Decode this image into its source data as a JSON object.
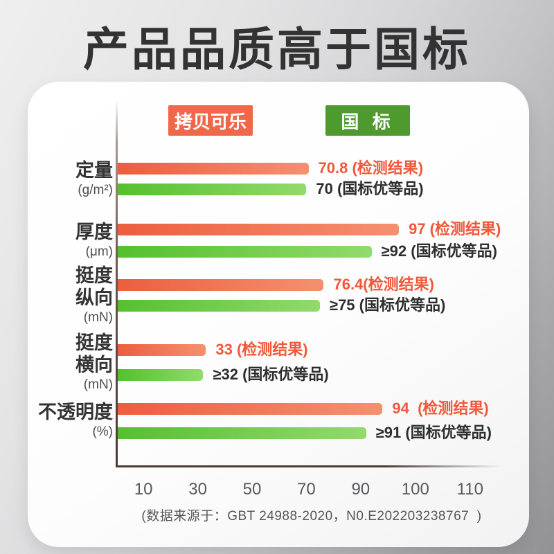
{
  "title": "产品品质高于国标",
  "legend": {
    "product": {
      "label": "拷贝可乐",
      "color": "#ef684a"
    },
    "standard": {
      "label": "国 标",
      "color": "#4e9a2e"
    }
  },
  "colors": {
    "product_bar_start": "#ec5e3e",
    "product_bar_end": "#f5906f",
    "standard_bar_start": "#55c02e",
    "standard_bar_end": "#92da6c",
    "product_text": "#f2573a",
    "standard_text": "#2e2e2e",
    "axis": "#4a3a33",
    "title_text": "#333333"
  },
  "chart_data": {
    "type": "bar",
    "orientation": "horizontal",
    "title": "产品品质高于国标",
    "legend_entries": [
      "拷贝可乐",
      "国 标"
    ],
    "categories": [
      {
        "name_lines": [
          "定量"
        ],
        "unit": "(g/m²)"
      },
      {
        "name_lines": [
          "厚度"
        ],
        "unit": "(μm)"
      },
      {
        "name_lines": [
          "挺度",
          "纵向"
        ],
        "unit": "(mN)"
      },
      {
        "name_lines": [
          "挺度",
          "横向"
        ],
        "unit": "(mN)"
      },
      {
        "name_lines": [
          "不透明度"
        ],
        "unit": "(%)"
      }
    ],
    "series": [
      {
        "name": "拷贝可乐",
        "values": [
          70.8,
          97,
          76.4,
          33,
          94
        ],
        "labels": [
          "70.8 (检测结果)",
          "97 (检测结果)",
          "76.4(检测结果)",
          "33 (检测结果)",
          "94  (检测结果)"
        ]
      },
      {
        "name": "国标",
        "values": [
          70,
          92,
          75,
          32,
          91
        ],
        "labels": [
          "70 (国标优等品)",
          "≥92 (国标优等品)",
          "≥75 (国标优等品)",
          "≥32 (国标优等品)",
          "≥91 (国标优等品)"
        ]
      }
    ],
    "x_ticks": [
      10,
      30,
      50,
      70,
      90,
      100,
      110
    ],
    "axis_note": "ticks 10-90 evenly spaced linear, 100 and 110 compressed at same spacing",
    "source_note": "(数据来源于：GBT 24988-2020，N0.E202203238767  )"
  }
}
